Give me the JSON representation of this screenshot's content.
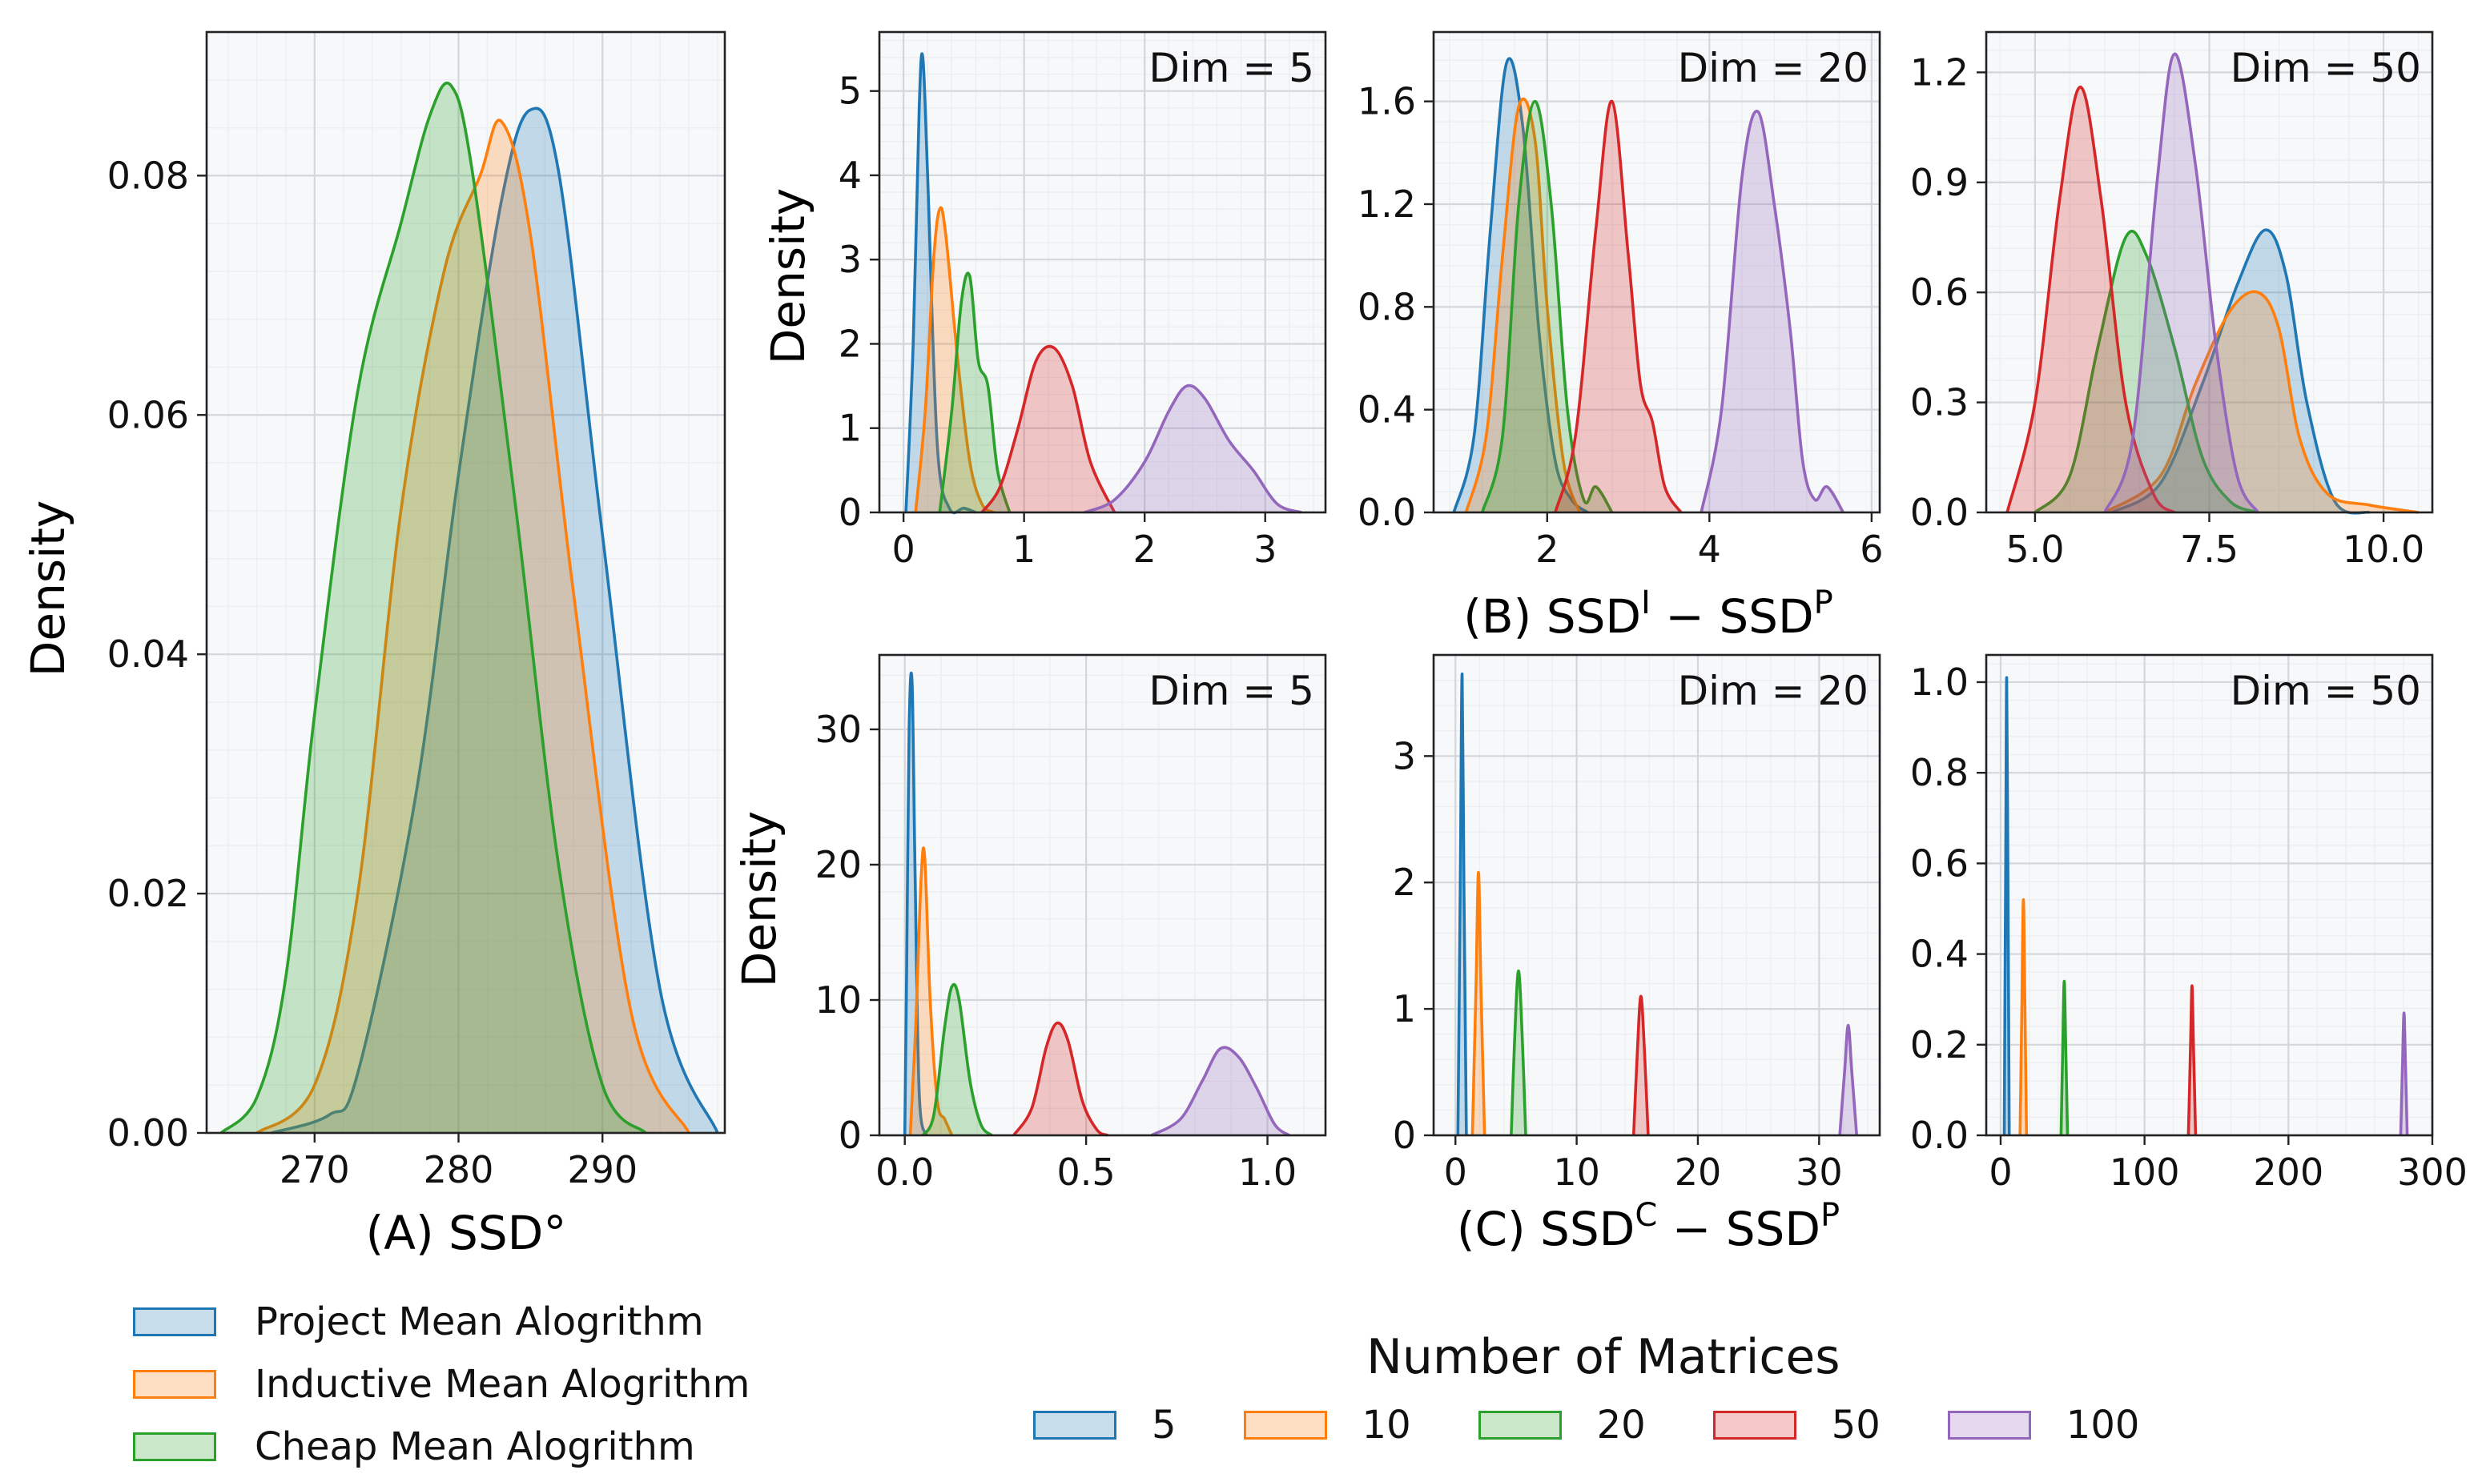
{
  "panel_a": {
    "caption": "(A) SSD°",
    "ylabel": "Density",
    "legend": [
      {
        "label": "Project Mean Alogrithm",
        "color": "#1f77b4"
      },
      {
        "label": "Inductive Mean Alogrithm",
        "color": "#ff7f0e"
      },
      {
        "label": "Cheap Mean Alogrithm",
        "color": "#2ca02c"
      }
    ]
  },
  "row_b": {
    "caption": "(B) SSD",
    "caption_sup_l": "I",
    "caption_mid": " − SSD",
    "caption_sup_r": "P",
    "ylabel": "Density"
  },
  "row_c": {
    "caption": "(C) SSD",
    "caption_sup_l": "C",
    "caption_mid": " − SSD",
    "caption_sup_r": "P",
    "ylabel": "Density"
  },
  "legend_b": {
    "title": "Number of Matrices",
    "items": [
      {
        "label": "5",
        "color": "#1f77b4"
      },
      {
        "label": "10",
        "color": "#ff7f0e"
      },
      {
        "label": "20",
        "color": "#2ca02c"
      },
      {
        "label": "50",
        "color": "#d62728"
      },
      {
        "label": "100",
        "color": "#9467bd"
      }
    ]
  },
  "chart_data": [
    {
      "id": "A",
      "type": "kde",
      "xlim": [
        262.5,
        298.5
      ],
      "ylim": [
        0,
        0.092
      ],
      "xticks": [
        270,
        280,
        290
      ],
      "xtick_labels": [
        "270",
        "280",
        "290"
      ],
      "yticks": [
        0,
        0.02,
        0.04,
        0.06,
        0.08
      ],
      "ytick_labels": [
        "0.00",
        "0.02",
        "0.04",
        "0.06",
        "0.08"
      ],
      "ylabel": "Density",
      "series": [
        {
          "name": "Project Mean Alogrithm",
          "color": "#1f77b4",
          "x": [
            267,
            271,
            273,
            277,
            280,
            283,
            285,
            287,
            290,
            294,
            298
          ],
          "y": [
            0,
            0.0015,
            0.005,
            0.028,
            0.055,
            0.078,
            0.0855,
            0.08,
            0.05,
            0.012,
            0
          ]
        },
        {
          "name": "Inductive Mean Alogrithm",
          "color": "#ff7f0e",
          "x": [
            266,
            270,
            273,
            276,
            279,
            281.5,
            283,
            285,
            288,
            292,
            296
          ],
          "y": [
            0,
            0.004,
            0.02,
            0.052,
            0.072,
            0.08,
            0.0845,
            0.075,
            0.045,
            0.01,
            0
          ]
        },
        {
          "name": "Cheap Mean Alogrithm",
          "color": "#2ca02c",
          "x": [
            263.5,
            266,
            268,
            270,
            273,
            276,
            278,
            279.5,
            281,
            284,
            287,
            290,
            293
          ],
          "y": [
            0,
            0.003,
            0.013,
            0.035,
            0.062,
            0.076,
            0.085,
            0.0875,
            0.08,
            0.052,
            0.022,
            0.004,
            0
          ]
        }
      ]
    },
    {
      "id": "B-dim5",
      "type": "kde",
      "annotation": "Dim = 5",
      "xlim": [
        -0.2,
        3.5
      ],
      "ylim": [
        0,
        5.7
      ],
      "xticks": [
        0,
        1,
        2,
        3
      ],
      "xtick_labels": [
        "0",
        "1",
        "2",
        "3"
      ],
      "yticks": [
        0,
        1,
        2,
        3,
        4,
        5
      ],
      "ytick_labels": [
        "0",
        "1",
        "2",
        "3",
        "4",
        "5"
      ],
      "series": [
        {
          "name": "5",
          "color": "#1f77b4",
          "x": [
            0.02,
            0.08,
            0.13,
            0.16,
            0.2,
            0.28,
            0.38,
            0.5,
            0.6
          ],
          "y": [
            0,
            2.0,
            4.8,
            5.4,
            4.0,
            0.8,
            0.05,
            0.05,
            0
          ]
        },
        {
          "name": "10",
          "color": "#ff7f0e",
          "x": [
            0.1,
            0.18,
            0.25,
            0.3,
            0.35,
            0.45,
            0.55,
            0.65,
            0.75
          ],
          "y": [
            0,
            1.2,
            3.0,
            3.6,
            3.3,
            1.8,
            0.6,
            0.1,
            0
          ]
        },
        {
          "name": "20",
          "color": "#2ca02c",
          "x": [
            0.3,
            0.4,
            0.48,
            0.55,
            0.62,
            0.7,
            0.78,
            0.88
          ],
          "y": [
            0,
            1.2,
            2.5,
            2.8,
            1.8,
            1.5,
            0.5,
            0
          ]
        },
        {
          "name": "50",
          "color": "#d62728",
          "x": [
            0.65,
            0.8,
            0.95,
            1.1,
            1.25,
            1.4,
            1.55,
            1.75
          ],
          "y": [
            0,
            0.3,
            1.0,
            1.8,
            1.95,
            1.5,
            0.6,
            0
          ]
        },
        {
          "name": "100",
          "color": "#9467bd",
          "x": [
            1.5,
            1.75,
            2.0,
            2.2,
            2.35,
            2.5,
            2.7,
            2.9,
            3.1,
            3.3
          ],
          "y": [
            0,
            0.15,
            0.6,
            1.2,
            1.5,
            1.35,
            0.85,
            0.5,
            0.1,
            0
          ]
        }
      ]
    },
    {
      "id": "B-dim20",
      "type": "kde",
      "annotation": "Dim = 20",
      "xlim": [
        0.6,
        6.1
      ],
      "ylim": [
        0,
        1.87
      ],
      "xticks": [
        2,
        4,
        6
      ],
      "xtick_labels": [
        "2",
        "4",
        "6"
      ],
      "yticks": [
        0,
        0.4,
        0.8,
        1.2,
        1.6
      ],
      "ytick_labels": [
        "0.0",
        "0.4",
        "0.8",
        "1.2",
        "1.6"
      ],
      "series": [
        {
          "name": "5",
          "color": "#1f77b4",
          "x": [
            0.85,
            1.1,
            1.3,
            1.5,
            1.7,
            1.9,
            2.1,
            2.3,
            2.5
          ],
          "y": [
            0,
            0.3,
            1.1,
            1.75,
            1.5,
            0.7,
            0.2,
            0.05,
            0
          ]
        },
        {
          "name": "10",
          "color": "#ff7f0e",
          "x": [
            1.0,
            1.25,
            1.45,
            1.65,
            1.85,
            2.0,
            2.2,
            2.4
          ],
          "y": [
            0,
            0.3,
            1.0,
            1.58,
            1.45,
            0.8,
            0.2,
            0
          ]
        },
        {
          "name": "20",
          "color": "#2ca02c",
          "x": [
            1.2,
            1.45,
            1.65,
            1.85,
            2.05,
            2.25,
            2.45,
            2.6,
            2.8
          ],
          "y": [
            0,
            0.3,
            1.2,
            1.6,
            1.2,
            0.4,
            0.05,
            0.1,
            0
          ]
        },
        {
          "name": "50",
          "color": "#d62728",
          "x": [
            2.1,
            2.35,
            2.6,
            2.8,
            3.0,
            3.15,
            3.3,
            3.45,
            3.65
          ],
          "y": [
            0,
            0.3,
            1.1,
            1.6,
            1.0,
            0.5,
            0.35,
            0.1,
            0
          ]
        },
        {
          "name": "100",
          "color": "#9467bd",
          "x": [
            3.9,
            4.15,
            4.4,
            4.6,
            4.8,
            5.0,
            5.15,
            5.3,
            5.45,
            5.65
          ],
          "y": [
            0,
            0.4,
            1.3,
            1.56,
            1.2,
            0.7,
            0.2,
            0.05,
            0.1,
            0
          ]
        }
      ]
    },
    {
      "id": "B-dim50",
      "type": "kde",
      "annotation": "Dim = 50",
      "xlim": [
        4.3,
        10.7
      ],
      "ylim": [
        0,
        1.31
      ],
      "xticks": [
        5.0,
        7.5,
        10.0
      ],
      "xtick_labels": [
        "5.0",
        "7.5",
        "10.0"
      ],
      "yticks": [
        0,
        0.3,
        0.6,
        0.9,
        1.2
      ],
      "ytick_labels": [
        "0.0",
        "0.3",
        "0.6",
        "0.9",
        "1.2"
      ],
      "series": [
        {
          "name": "5",
          "color": "#1f77b4",
          "x": [
            6.1,
            6.8,
            7.4,
            7.9,
            8.3,
            8.6,
            8.9,
            9.3,
            9.8
          ],
          "y": [
            0,
            0.08,
            0.35,
            0.62,
            0.77,
            0.65,
            0.3,
            0.03,
            0
          ]
        },
        {
          "name": "10",
          "color": "#ff7f0e",
          "x": [
            6.0,
            6.8,
            7.3,
            7.8,
            8.2,
            8.5,
            8.8,
            9.2,
            9.8,
            10.5
          ],
          "y": [
            0,
            0.1,
            0.35,
            0.55,
            0.6,
            0.5,
            0.2,
            0.05,
            0.02,
            0
          ]
        },
        {
          "name": "20",
          "color": "#2ca02c",
          "x": [
            5.0,
            5.5,
            5.9,
            6.3,
            6.6,
            7.0,
            7.4,
            7.8,
            8.2
          ],
          "y": [
            0,
            0.1,
            0.45,
            0.75,
            0.7,
            0.45,
            0.15,
            0.03,
            0
          ]
        },
        {
          "name": "50",
          "color": "#d62728",
          "x": [
            4.6,
            5.0,
            5.35,
            5.65,
            5.95,
            6.3,
            6.7,
            7.0
          ],
          "y": [
            0,
            0.3,
            0.85,
            1.16,
            0.85,
            0.3,
            0.05,
            0
          ]
        },
        {
          "name": "100",
          "color": "#9467bd",
          "x": [
            6.0,
            6.4,
            6.75,
            7.0,
            7.3,
            7.6,
            7.9,
            8.2
          ],
          "y": [
            0,
            0.2,
            0.9,
            1.25,
            0.95,
            0.45,
            0.1,
            0
          ]
        }
      ]
    },
    {
      "id": "C-dim5",
      "type": "kde",
      "annotation": "Dim = 5",
      "xlim": [
        -0.07,
        1.16
      ],
      "ylim": [
        0,
        35.5
      ],
      "xticks": [
        0,
        0.5,
        1.0
      ],
      "xtick_labels": [
        "0.0",
        "0.5",
        "1.0"
      ],
      "yticks": [
        0,
        10,
        20,
        30
      ],
      "ytick_labels": [
        "0",
        "10",
        "20",
        "30"
      ],
      "series": [
        {
          "name": "5",
          "color": "#1f77b4",
          "x": [
            0.0,
            0.005,
            0.012,
            0.02,
            0.028,
            0.04,
            0.06
          ],
          "y": [
            0,
            12,
            30,
            33.5,
            20,
            3,
            0
          ]
        },
        {
          "name": "10",
          "color": "#ff7f0e",
          "x": [
            0.015,
            0.03,
            0.045,
            0.055,
            0.07,
            0.09,
            0.11,
            0.13
          ],
          "y": [
            0,
            8,
            19,
            20.5,
            10,
            2.5,
            1.2,
            0
          ]
        },
        {
          "name": "20",
          "color": "#2ca02c",
          "x": [
            0.05,
            0.08,
            0.11,
            0.13,
            0.15,
            0.18,
            0.21,
            0.24
          ],
          "y": [
            0,
            1.5,
            8,
            11,
            10,
            4,
            0.8,
            0
          ]
        },
        {
          "name": "50",
          "color": "#d62728",
          "x": [
            0.3,
            0.35,
            0.39,
            0.42,
            0.45,
            0.49,
            0.53,
            0.56
          ],
          "y": [
            0,
            2,
            6.5,
            8.3,
            7,
            2.5,
            0.4,
            0
          ]
        },
        {
          "name": "100",
          "color": "#9467bd",
          "x": [
            0.68,
            0.76,
            0.82,
            0.87,
            0.92,
            0.97,
            1.02,
            1.06
          ],
          "y": [
            0,
            1.2,
            4,
            6.4,
            5.8,
            3.5,
            0.8,
            0
          ]
        }
      ]
    },
    {
      "id": "C-dim20",
      "type": "kde",
      "annotation": "Dim = 20",
      "xlim": [
        -1.8,
        35
      ],
      "ylim": [
        0,
        3.8
      ],
      "xticks": [
        0,
        10,
        20,
        30
      ],
      "xtick_labels": [
        "0",
        "10",
        "20",
        "30"
      ],
      "yticks": [
        0,
        1,
        2,
        3
      ],
      "ytick_labels": [
        "0",
        "1",
        "2",
        "3"
      ],
      "series": [
        {
          "name": "5",
          "color": "#1f77b4",
          "x": [
            0.2,
            0.4,
            0.55,
            0.7,
            0.9
          ],
          "y": [
            0,
            2,
            3.65,
            2,
            0
          ]
        },
        {
          "name": "10",
          "color": "#ff7f0e",
          "x": [
            1.4,
            1.7,
            1.9,
            2.1,
            2.4
          ],
          "y": [
            0,
            1.2,
            2.08,
            1.2,
            0
          ]
        },
        {
          "name": "20",
          "color": "#2ca02c",
          "x": [
            4.6,
            4.9,
            5.2,
            5.5,
            5.8
          ],
          "y": [
            0,
            0.8,
            1.3,
            0.8,
            0
          ]
        },
        {
          "name": "50",
          "color": "#d62728",
          "x": [
            14.7,
            15.0,
            15.3,
            15.6,
            15.9
          ],
          "y": [
            0,
            0.65,
            1.1,
            0.65,
            0
          ]
        },
        {
          "name": "100",
          "color": "#9467bd",
          "x": [
            31.7,
            32.1,
            32.4,
            32.7,
            33.1
          ],
          "y": [
            0,
            0.5,
            0.87,
            0.5,
            0
          ]
        }
      ]
    },
    {
      "id": "C-dim50",
      "type": "kde",
      "annotation": "Dim = 50",
      "xlim": [
        -10,
        300
      ],
      "ylim": [
        0,
        1.06
      ],
      "xticks": [
        0,
        100,
        200,
        300
      ],
      "xtick_labels": [
        "0",
        "100",
        "200",
        "300"
      ],
      "yticks": [
        0,
        0.2,
        0.4,
        0.6,
        0.8,
        1.0
      ],
      "ytick_labels": [
        "0.0",
        "0.2",
        "0.4",
        "0.6",
        "0.8",
        "1.0"
      ],
      "series": [
        {
          "name": "5",
          "color": "#1f77b4",
          "x": [
            2.5,
            3.5,
            4.2,
            5.0,
            6.0
          ],
          "y": [
            0,
            0.6,
            1.01,
            0.6,
            0
          ]
        },
        {
          "name": "10",
          "color": "#ff7f0e",
          "x": [
            13.5,
            14.8,
            15.8,
            16.8,
            18.0
          ],
          "y": [
            0,
            0.3,
            0.52,
            0.3,
            0
          ]
        },
        {
          "name": "20",
          "color": "#2ca02c",
          "x": [
            42.0,
            43.2,
            44.2,
            45.2,
            46.5
          ],
          "y": [
            0,
            0.2,
            0.34,
            0.2,
            0
          ]
        },
        {
          "name": "50",
          "color": "#d62728",
          "x": [
            130.5,
            132.0,
            133.0,
            134.0,
            135.5
          ],
          "y": [
            0,
            0.2,
            0.33,
            0.2,
            0
          ]
        },
        {
          "name": "100",
          "color": "#9467bd",
          "x": [
            278.0,
            279.3,
            280.3,
            281.3,
            282.5
          ],
          "y": [
            0,
            0.16,
            0.27,
            0.16,
            0
          ]
        }
      ]
    }
  ]
}
